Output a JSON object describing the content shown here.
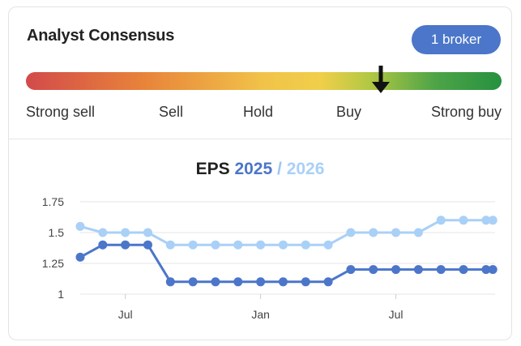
{
  "header": {
    "title": "Analyst Consensus",
    "broker_badge": "1 broker"
  },
  "consensus": {
    "labels": [
      "Strong sell",
      "Sell",
      "Hold",
      "Buy",
      "Strong buy"
    ],
    "position": 0.74,
    "marker": "down-arrow-icon"
  },
  "eps": {
    "title_prefix": "EPS",
    "year1": "2025",
    "separator": "/",
    "year2": "2026"
  },
  "chart_data": {
    "type": "line",
    "y_ticks": [
      "1.75",
      "1.5",
      "1.25",
      "1"
    ],
    "ylim": [
      1,
      1.75
    ],
    "x_ticks": [
      {
        "label": "Jul",
        "x": 2
      },
      {
        "label": "Jan",
        "x": 8
      },
      {
        "label": "Jul",
        "x": 14
      }
    ],
    "xlim": [
      0,
      18.4
    ],
    "grid": true,
    "series": [
      {
        "name": "2025",
        "color": "#4b76c9",
        "x": [
          0,
          1,
          2,
          3,
          4,
          5,
          6,
          7,
          8,
          9,
          10,
          11,
          12,
          13,
          14,
          15,
          16,
          17,
          18,
          18.3
        ],
        "values": [
          1.3,
          1.4,
          1.4,
          1.4,
          1.1,
          1.1,
          1.1,
          1.1,
          1.1,
          1.1,
          1.1,
          1.1,
          1.2,
          1.2,
          1.2,
          1.2,
          1.2,
          1.2,
          1.2,
          1.2
        ]
      },
      {
        "name": "2026",
        "color": "#a9d0f7",
        "x": [
          0,
          1,
          2,
          3,
          4,
          5,
          6,
          7,
          8,
          9,
          10,
          11,
          12,
          13,
          14,
          15,
          16,
          17,
          18,
          18.3
        ],
        "values": [
          1.55,
          1.5,
          1.5,
          1.5,
          1.4,
          1.4,
          1.4,
          1.4,
          1.4,
          1.4,
          1.4,
          1.4,
          1.5,
          1.5,
          1.5,
          1.5,
          1.6,
          1.6,
          1.6,
          1.6
        ]
      }
    ]
  }
}
